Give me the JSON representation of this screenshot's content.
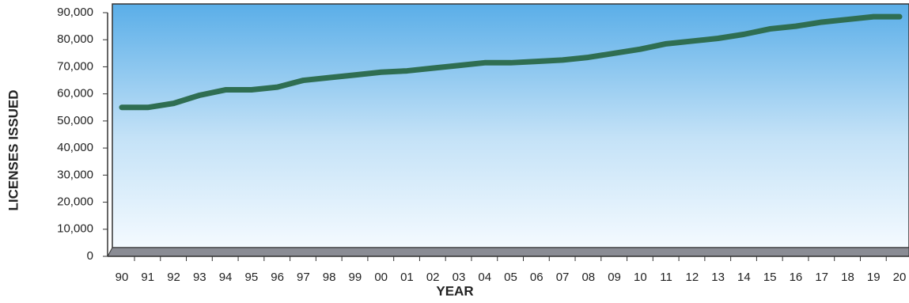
{
  "chart_data": {
    "type": "line",
    "x_label": "YEAR",
    "y_label": "LICENSES ISSUED",
    "categories": [
      "90",
      "91",
      "92",
      "93",
      "94",
      "95",
      "96",
      "97",
      "98",
      "99",
      "00",
      "01",
      "02",
      "03",
      "04",
      "05",
      "06",
      "07",
      "08",
      "09",
      "10",
      "11",
      "12",
      "13",
      "14",
      "15",
      "16",
      "17",
      "18",
      "19",
      "20"
    ],
    "series": [
      {
        "color": "#2f6e52",
        "values": [
          55000,
          55000,
          56500,
          59500,
          61500,
          61500,
          62500,
          65000,
          66000,
          67000,
          68000,
          68500,
          69500,
          70500,
          71500,
          71500,
          72000,
          72500,
          73500,
          75000,
          76500,
          78500,
          79500,
          80500,
          82000,
          84000,
          85000,
          86500,
          87500,
          88500,
          88500
        ]
      }
    ],
    "ylim": [
      0,
      90000
    ],
    "yticks": [
      0,
      {
        "value": 10000,
        "label": "10,000"
      },
      {
        "value": 20000,
        "label": "20,000"
      },
      {
        "value": 30000,
        "label": "30,000"
      },
      {
        "value": 40000,
        "label": "40,000"
      },
      {
        "value": 50000,
        "label": "50,000"
      },
      {
        "value": 60000,
        "label": "60,000"
      },
      {
        "value": 70000,
        "label": "70,000"
      },
      {
        "value": 80000,
        "label": "80,000"
      },
      {
        "value": 90000,
        "label": "90,000"
      }
    ]
  }
}
